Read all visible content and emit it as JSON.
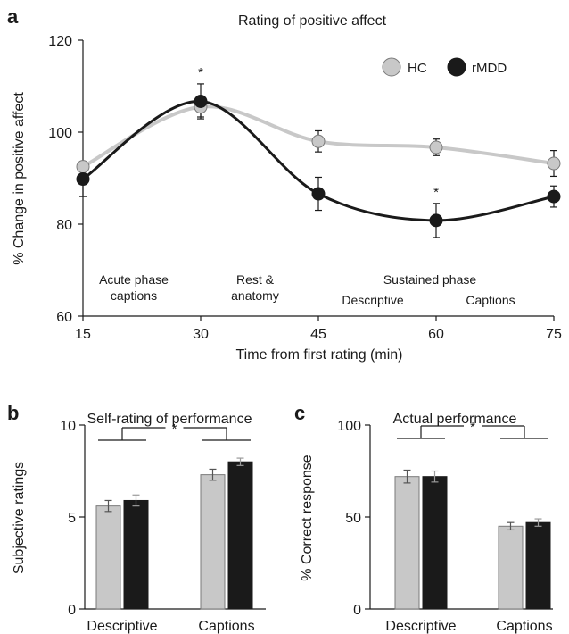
{
  "colors": {
    "hc": "#c8c8c8",
    "hc_edge": "#7a7a7a",
    "rmdd": "#1a1a1a",
    "axis": "#1a1a1a"
  },
  "chart_data": [
    {
      "panel": "a",
      "type": "line",
      "title": "Rating of positive affect",
      "xlabel": "Time from first rating (min)",
      "ylabel": "% Change in positive affect",
      "x": [
        15,
        30,
        45,
        60,
        75
      ],
      "xticks": [
        "15",
        "30",
        "45",
        "60",
        "75"
      ],
      "ylim": [
        60,
        120
      ],
      "yticks": [
        "60",
        "80",
        "100",
        "120"
      ],
      "series": [
        {
          "name": "HC",
          "values": [
            92.5,
            105.5,
            98,
            96.7,
            93.2
          ],
          "errors": [
            0,
            2.2,
            2.3,
            1.8,
            2.8
          ]
        },
        {
          "name": "rMDD",
          "values": [
            89.8,
            106.7,
            86.6,
            80.8,
            86
          ],
          "errors": [
            3.8,
            3.8,
            3.6,
            3.7,
            2.3
          ]
        }
      ],
      "significance": [
        "*",
        "*"
      ],
      "annotations": {
        "acute_1": "Acute phase",
        "acute_2": "captions",
        "rest_1": "Rest &",
        "rest_2": "anatomy",
        "sustained": "Sustained phase",
        "descriptive": "Descriptive",
        "captions": "Captions"
      },
      "legend_position": "top-right"
    },
    {
      "panel": "b",
      "type": "bar",
      "title": "Self-rating of performance",
      "ylabel": "Subjective ratings",
      "categories": [
        "Descriptive",
        "Captions"
      ],
      "ylim": [
        0,
        10
      ],
      "yticks": [
        "0",
        "5",
        "10"
      ],
      "series": [
        {
          "name": "HC",
          "values": [
            5.6,
            7.3
          ],
          "errors": [
            0.3,
            0.3
          ]
        },
        {
          "name": "rMDD",
          "values": [
            5.9,
            8.0
          ],
          "errors": [
            0.3,
            0.2
          ]
        }
      ],
      "significance": "*"
    },
    {
      "panel": "c",
      "type": "bar",
      "title": "Actual performance",
      "ylabel": "% Correct response",
      "categories": [
        "Descriptive",
        "Captions"
      ],
      "ylim": [
        0,
        100
      ],
      "yticks": [
        "0",
        "50",
        "100"
      ],
      "series": [
        {
          "name": "HC",
          "values": [
            72,
            45
          ],
          "errors": [
            3.5,
            2
          ]
        },
        {
          "name": "rMDD",
          "values": [
            72,
            47
          ],
          "errors": [
            3,
            2
          ]
        }
      ],
      "significance": "*"
    }
  ]
}
